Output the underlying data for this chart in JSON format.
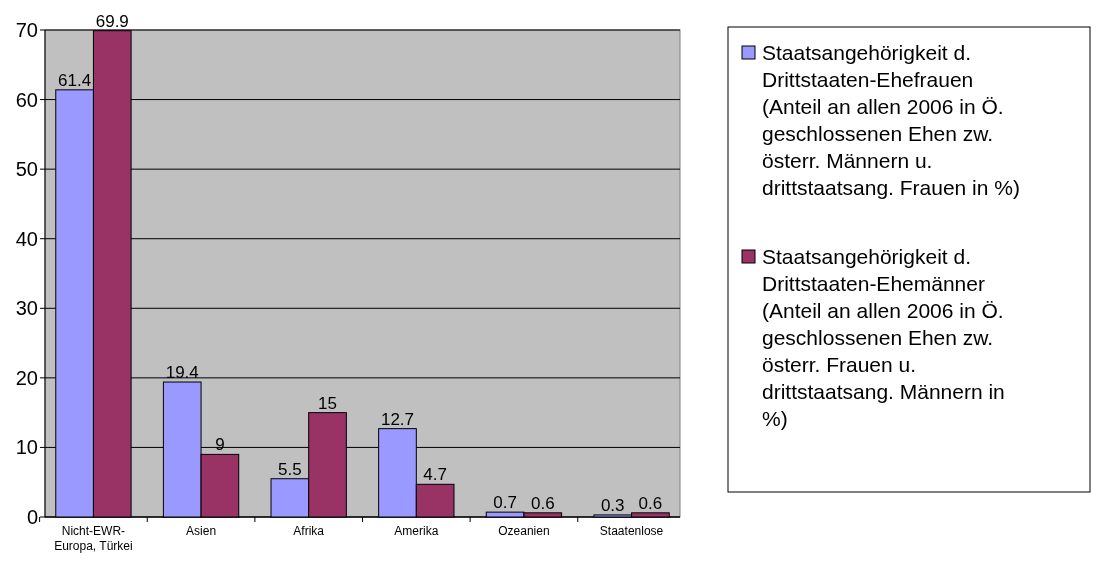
{
  "chart_data": {
    "type": "bar",
    "categories": [
      "Nicht-EWR-Europa, Türkei",
      "Asien",
      "Afrika",
      "Amerika",
      "Ozeanien",
      "Staatenlose"
    ],
    "series": [
      {
        "name": "Staatsangehörigkeit d. Drittstaaten-Ehefrauen (Anteil an allen 2006 in Ö. geschlossenen Ehen zw. österr. Männern u. drittstaatsang. Frauen in %)",
        "color": "#9999ff",
        "values": [
          61.4,
          19.4,
          5.5,
          12.7,
          0.7,
          0.3
        ]
      },
      {
        "name": "Staatsangehörigkeit d. Drittstaaten-Ehemänner (Anteil an allen 2006 in Ö. geschlossenen Ehen zw. österr. Frauen u. drittstaatsang. Männern in %)",
        "color": "#993366",
        "values": [
          69.9,
          9,
          15,
          4.7,
          0.6,
          0.6
        ]
      }
    ],
    "ylim": [
      0,
      70
    ],
    "yticks": [
      0,
      10,
      20,
      30,
      40,
      50,
      60,
      70
    ],
    "grid": "y",
    "legend": "right",
    "data_labels": true
  }
}
